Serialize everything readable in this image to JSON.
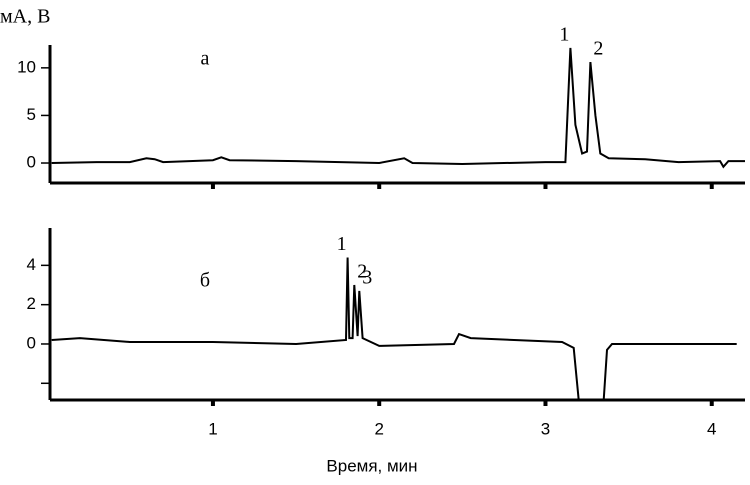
{
  "chart_data": [
    {
      "type": "line",
      "y_label": "мА, В",
      "panel_label": "а",
      "series": [
        {
          "color": "#000000",
          "x": [
            0.03,
            0.3,
            0.5,
            0.6,
            0.65,
            0.7,
            1.0,
            1.05,
            1.1,
            1.5,
            2.0,
            2.15,
            2.2,
            2.5,
            3.0,
            3.12,
            3.15,
            3.18,
            3.22,
            3.25,
            3.27,
            3.3,
            3.33,
            3.38,
            3.6,
            3.8,
            4.05,
            4.07,
            4.1,
            4.2
          ],
          "values": [
            0,
            0.1,
            0.1,
            0.5,
            0.4,
            0.1,
            0.3,
            0.6,
            0.3,
            0.2,
            0,
            0.5,
            0,
            -0.1,
            0.1,
            0.1,
            12.1,
            4,
            1.0,
            1.2,
            10.6,
            5,
            1,
            0.5,
            0.4,
            0.1,
            0.2,
            -0.4,
            0.2,
            0.2
          ]
        }
      ],
      "peak_labels": [
        "1",
        "2"
      ],
      "xlim": [
        0.02,
        4.2
      ],
      "ylim": [
        -2.1,
        12.4
      ],
      "xticks": [
        1,
        2,
        3,
        4
      ],
      "yticks": [
        0,
        5,
        10
      ],
      "show_xtick_labels": false
    },
    {
      "type": "line",
      "x_label": "Время, мин",
      "panel_label": "б",
      "series": [
        {
          "color": "#000000",
          "x": [
            0.03,
            0.2,
            0.5,
            1.0,
            1.5,
            1.8,
            1.81,
            1.82,
            1.84,
            1.85,
            1.87,
            1.88,
            1.9,
            2.0,
            2.45,
            2.48,
            2.55,
            3.1,
            3.17,
            3.2,
            3.35,
            3.37,
            3.4,
            4.15
          ],
          "values": [
            0.2,
            0.3,
            0.1,
            0.1,
            0,
            0.2,
            4.4,
            0.3,
            0.3,
            3.0,
            0.4,
            2.7,
            0.3,
            -0.1,
            0,
            0.5,
            0.3,
            0.1,
            -0.2,
            -2.85,
            -2.85,
            -0.3,
            0,
            0
          ]
        }
      ],
      "peak_labels": [
        "1",
        "2",
        "3"
      ],
      "xlim": [
        0.02,
        4.2
      ],
      "ylim": [
        -2.85,
        5.9
      ],
      "xticks": [
        1,
        2,
        3,
        4
      ],
      "yticks": [
        0,
        2,
        4
      ],
      "minor_yticks": [
        -2
      ],
      "show_xtick_labels": true
    }
  ]
}
